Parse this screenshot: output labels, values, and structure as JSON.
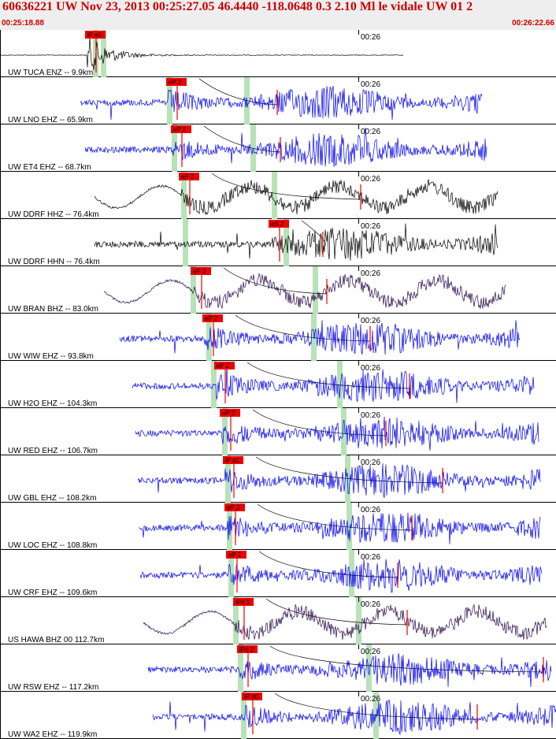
{
  "header": {
    "title": "60636221 UW Nov 23, 2013 00:25:27.05    46.4440 -118.0648  0.3 2.10 Ml le vidale UW 01   2",
    "start_time": "00:25:18.88",
    "end_time": "00:26:22.66"
  },
  "colors": {
    "header_bg": "#eeeeee",
    "header_text": "#cc0000",
    "trace_blue": "#0000ee",
    "trace_black": "#000000",
    "trace_purple": "#2a0a4a",
    "pick": "#ee0000",
    "window": "#b8e2b8"
  },
  "minute_label": "00:26",
  "traces": [
    {
      "station": "UW TUCA ENZ -- 9.9km",
      "pick": "iP:e0",
      "color": "black",
      "type": "burst"
    },
    {
      "station": "UW LNO EHZ -- 65.9km",
      "pick": "eP 2",
      "color": "blue",
      "type": "noise"
    },
    {
      "station": "UW ET4 EHZ -- 68.7km",
      "pick": "eP 2",
      "color": "blue",
      "type": "noise"
    },
    {
      "station": "UW DDRF HHZ -- 76.4km",
      "pick": "eP 2",
      "color": "black",
      "type": "wave"
    },
    {
      "station": "UW DDRF HHN -- 76.4km",
      "pick": "eS 2",
      "color": "black",
      "type": "noise"
    },
    {
      "station": "UW BRAN BHZ -- 83.0km",
      "pick": "eP 2",
      "color": "purple",
      "type": "wave"
    },
    {
      "station": "UW WIW EHZ -- 93.8km",
      "pick": "eP 2",
      "color": "blue",
      "type": "noise"
    },
    {
      "station": "UW H2O EHZ -- 104.3km",
      "pick": "eP 2",
      "color": "blue",
      "type": "noise"
    },
    {
      "station": "UW RED EHZ -- 106.7km",
      "pick": "eP 2",
      "color": "blue",
      "type": "noise"
    },
    {
      "station": "UW GBL EHZ -- 108.2km",
      "pick": "iP d1",
      "color": "blue",
      "type": "noise"
    },
    {
      "station": "UW LOC EHZ -- 108.8km",
      "pick": "eP 2",
      "color": "blue",
      "type": "noise"
    },
    {
      "station": "UW CRF EHZ -- 109.6km",
      "pick": "eP 2",
      "color": "blue",
      "type": "noise"
    },
    {
      "station": "US HAWA BHZ 00 112.7km",
      "pick": "iPd 1",
      "color": "purple",
      "type": "wave"
    },
    {
      "station": "UW RSW EHZ -- 117.2km",
      "pick": "iPd 2",
      "color": "blue",
      "type": "noise"
    },
    {
      "station": "UW WA2 EHZ -- 119.9km",
      "pick": "iP d0",
      "color": "blue",
      "type": "noise"
    }
  ]
}
